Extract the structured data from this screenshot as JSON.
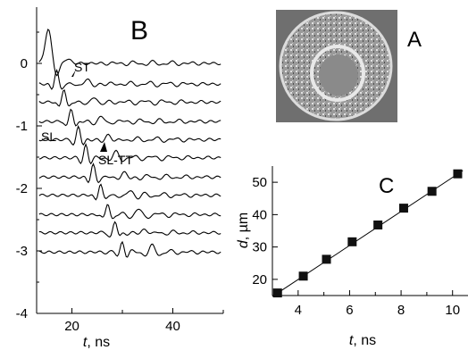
{
  "figure": {
    "panel_b_label": "B",
    "panel_a_label": "A",
    "panel_c_label": "C",
    "annotations": {
      "st": "ST",
      "sl": "SL",
      "sl_tt": "SL-TT"
    }
  },
  "micrograph": {
    "description_icon": "tissue-cross-section-image",
    "background_color": "#6f6f6f",
    "ring_color": "#e8e8e8"
  },
  "chart_data": [
    {
      "id": "B",
      "type": "line",
      "xlabel_var": "t",
      "xlabel_unit": ", ns",
      "xlim": [
        13,
        50
      ],
      "ylim": [
        -4,
        0.9
      ],
      "x_ticks": [
        "20",
        "40"
      ],
      "y_ticks": [
        "0",
        "-1",
        "-2",
        "-3",
        "-4"
      ],
      "x_tick_values": [
        20,
        40
      ],
      "y_tick_values": [
        0,
        -1,
        -2,
        -3,
        -4
      ],
      "trace_count": 11,
      "trace_offsets": [
        0,
        -0.33,
        -0.62,
        -0.93,
        -1.22,
        -1.51,
        -1.82,
        -2.11,
        -2.42,
        -2.71,
        -3.02
      ],
      "trace_color": "#000000"
    },
    {
      "id": "C",
      "type": "scatter",
      "xlabel_var": "t",
      "xlabel_unit": ", ns",
      "ylabel_var": "d",
      "ylabel_unit": ", µm",
      "xlim": [
        3,
        10.6
      ],
      "ylim": [
        15,
        55
      ],
      "x_ticks": [
        "4",
        "6",
        "8",
        "10"
      ],
      "y_ticks": [
        "20",
        "30",
        "40",
        "50"
      ],
      "x_tick_values": [
        4,
        6,
        8,
        10
      ],
      "y_tick_values": [
        20,
        30,
        40,
        50
      ],
      "series": [
        {
          "x": [
            3.2,
            4.2,
            5.1,
            6.1,
            7.1,
            8.1,
            9.2,
            10.2
          ],
          "y": [
            15.8,
            21.0,
            26.2,
            31.6,
            36.8,
            42.0,
            47.2,
            52.6
          ]
        }
      ],
      "fit_line": {
        "x": [
          3.0,
          10.4
        ],
        "y": [
          14.7,
          53.6
        ]
      },
      "marker_color": "#111111"
    }
  ]
}
